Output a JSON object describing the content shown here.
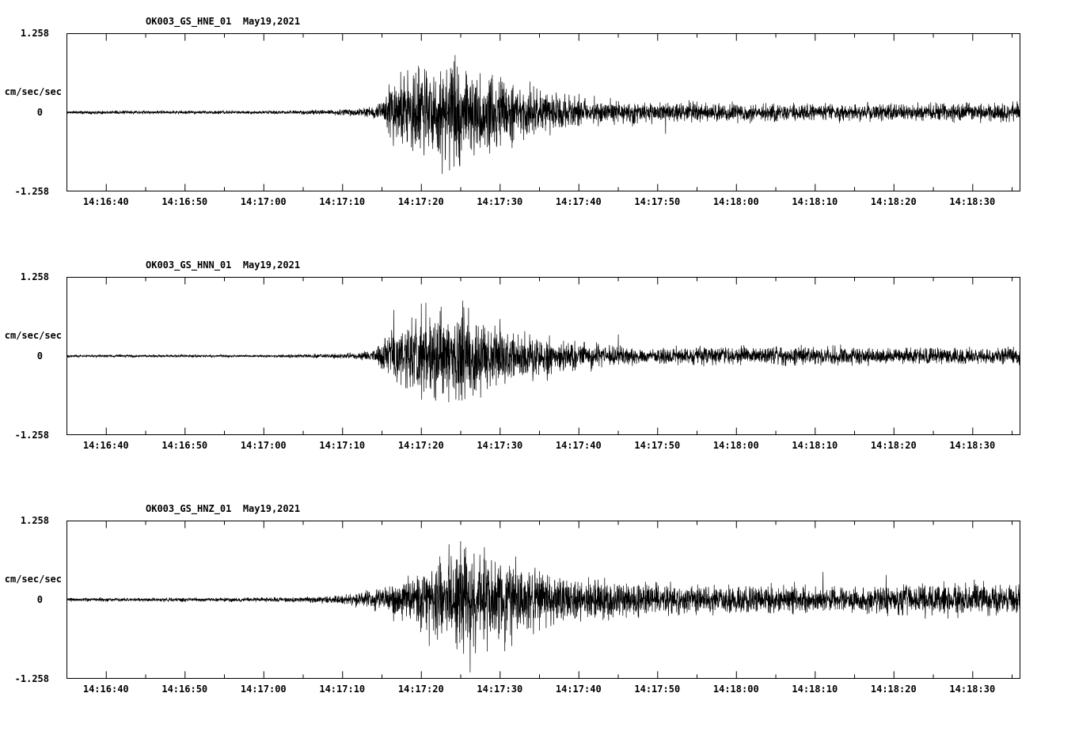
{
  "page": {
    "background": "#ffffff",
    "trace_color": "#000000"
  },
  "chart_data": [
    {
      "type": "line",
      "title": "OK003_GS_HNE_01  May19,2021",
      "station": "OK003",
      "channel": "HNE",
      "date": "May19,2021",
      "ylabel": "cm/sec/sec",
      "ylim": [
        -1.258,
        1.258
      ],
      "ytick_labels": [
        "1.258",
        "0",
        "-1.258"
      ],
      "duration_s": 121,
      "x_start_time": "14:16:35",
      "x_ticks": [
        "14:16:40",
        "14:16:50",
        "14:17:00",
        "14:17:10",
        "14:17:20",
        "14:17:30",
        "14:17:40",
        "14:17:50",
        "14:18:00",
        "14:18:10",
        "14:18:20",
        "14:18:30"
      ],
      "x_tick_offsets_s": [
        5,
        15,
        25,
        35,
        45,
        55,
        65,
        75,
        85,
        95,
        105,
        115
      ],
      "seed": 11,
      "envelope": [
        [
          0,
          0.02
        ],
        [
          25,
          0.02
        ],
        [
          33,
          0.03
        ],
        [
          38,
          0.05
        ],
        [
          40,
          0.12
        ],
        [
          41,
          0.4
        ],
        [
          43,
          0.45
        ],
        [
          46,
          0.55
        ],
        [
          48,
          0.6
        ],
        [
          50,
          0.62
        ],
        [
          52,
          0.5
        ],
        [
          55,
          0.42
        ],
        [
          57,
          0.35
        ],
        [
          60,
          0.28
        ],
        [
          63,
          0.22
        ],
        [
          68,
          0.16
        ],
        [
          72,
          0.13
        ],
        [
          78,
          0.12
        ],
        [
          85,
          0.11
        ],
        [
          95,
          0.1
        ],
        [
          105,
          0.1
        ],
        [
          113,
          0.11
        ],
        [
          121,
          0.11
        ]
      ],
      "spikes": [
        [
          44,
          0.6
        ],
        [
          49.3,
          0.93
        ],
        [
          50.1,
          -0.62
        ],
        [
          58,
          -0.45
        ],
        [
          76,
          -0.35
        ]
      ]
    },
    {
      "type": "line",
      "title": "OK003_GS_HNN_01  May19,2021",
      "station": "OK003",
      "channel": "HNN",
      "date": "May19,2021",
      "ylabel": "cm/sec/sec",
      "ylim": [
        -1.258,
        1.258
      ],
      "ytick_labels": [
        "1.258",
        "0",
        "-1.258"
      ],
      "duration_s": 121,
      "x_start_time": "14:16:35",
      "x_ticks": [
        "14:16:40",
        "14:16:50",
        "14:17:00",
        "14:17:10",
        "14:17:20",
        "14:17:30",
        "14:17:40",
        "14:17:50",
        "14:18:00",
        "14:18:10",
        "14:18:20",
        "14:18:30"
      ],
      "x_tick_offsets_s": [
        5,
        15,
        25,
        35,
        45,
        55,
        65,
        75,
        85,
        95,
        105,
        115
      ],
      "seed": 22,
      "envelope": [
        [
          0,
          0.015
        ],
        [
          25,
          0.015
        ],
        [
          33,
          0.025
        ],
        [
          37,
          0.04
        ],
        [
          39,
          0.08
        ],
        [
          40,
          0.2
        ],
        [
          42,
          0.35
        ],
        [
          44,
          0.5
        ],
        [
          46,
          0.55
        ],
        [
          48,
          0.5
        ],
        [
          50,
          0.55
        ],
        [
          52,
          0.45
        ],
        [
          54,
          0.35
        ],
        [
          56,
          0.3
        ],
        [
          58,
          0.28
        ],
        [
          60,
          0.25
        ],
        [
          62,
          0.2
        ],
        [
          65,
          0.15
        ],
        [
          70,
          0.12
        ],
        [
          75,
          0.1
        ],
        [
          80,
          0.1
        ],
        [
          90,
          0.11
        ],
        [
          100,
          0.1
        ],
        [
          110,
          0.1
        ],
        [
          121,
          0.09
        ]
      ],
      "spikes": [
        [
          41.5,
          0.75
        ],
        [
          45,
          0.85
        ],
        [
          47.5,
          0.8
        ],
        [
          49.8,
          -0.72
        ],
        [
          51,
          0.78
        ],
        [
          55,
          0.6
        ],
        [
          61,
          -0.4
        ],
        [
          70,
          0.35
        ]
      ]
    },
    {
      "type": "line",
      "title": "OK003_GS_HNZ_01  May19,2021",
      "station": "OK003",
      "channel": "HNZ",
      "date": "May19,2021",
      "ylabel": "cm/sec/sec",
      "ylim": [
        -1.258,
        1.258
      ],
      "ytick_labels": [
        "1.258",
        "0",
        "-1.258"
      ],
      "duration_s": 121,
      "x_start_time": "14:16:35",
      "x_ticks": [
        "14:16:40",
        "14:16:50",
        "14:17:00",
        "14:17:10",
        "14:17:20",
        "14:17:30",
        "14:17:40",
        "14:17:50",
        "14:18:00",
        "14:18:10",
        "14:18:20",
        "14:18:30"
      ],
      "x_tick_offsets_s": [
        5,
        15,
        25,
        35,
        45,
        55,
        65,
        75,
        85,
        95,
        105,
        115
      ],
      "seed": 33,
      "envelope": [
        [
          0,
          0.02
        ],
        [
          25,
          0.025
        ],
        [
          30,
          0.03
        ],
        [
          34,
          0.05
        ],
        [
          37,
          0.08
        ],
        [
          40,
          0.14
        ],
        [
          42,
          0.25
        ],
        [
          45,
          0.35
        ],
        [
          47,
          0.45
        ],
        [
          49,
          0.55
        ],
        [
          51,
          0.6
        ],
        [
          53,
          0.55
        ],
        [
          55,
          0.5
        ],
        [
          58,
          0.4
        ],
        [
          61,
          0.3
        ],
        [
          64,
          0.25
        ],
        [
          68,
          0.22
        ],
        [
          72,
          0.2
        ],
        [
          76,
          0.18
        ],
        [
          82,
          0.17
        ],
        [
          88,
          0.18
        ],
        [
          94,
          0.17
        ],
        [
          100,
          0.16
        ],
        [
          106,
          0.17
        ],
        [
          112,
          0.2
        ],
        [
          117,
          0.18
        ],
        [
          121,
          0.17
        ]
      ],
      "spikes": [
        [
          46,
          -0.75
        ],
        [
          48.5,
          0.9
        ],
        [
          50,
          0.95
        ],
        [
          51.2,
          -1.18
        ],
        [
          53,
          0.85
        ],
        [
          57,
          0.7
        ],
        [
          60,
          -0.5
        ],
        [
          96,
          0.45
        ],
        [
          104,
          0.4
        ]
      ]
    }
  ]
}
